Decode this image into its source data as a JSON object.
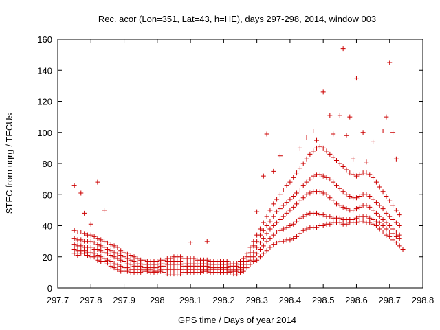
{
  "chart_data": {
    "type": "scatter",
    "title": "Rec. acor (Lon=351, Lat=43, h=HE), days 297-298, 2014, window 003",
    "xlabel": "GPS time / Days of year 2014",
    "ylabel": "STEC from uqrg / TECUs",
    "xlim": [
      297.7,
      298.8
    ],
    "ylim": [
      0,
      160
    ],
    "xticks": [
      "297.7",
      "297.8",
      "297.9",
      "298",
      "298.1",
      "298.2",
      "298.3",
      "298.4",
      "298.5",
      "298.6",
      "298.7",
      "298.8"
    ],
    "yticks": [
      "0",
      "20",
      "40",
      "60",
      "80",
      "100",
      "120",
      "140",
      "160"
    ],
    "grid": false,
    "legend": "none",
    "marker": "plus",
    "color": "#cc0000",
    "series": [
      {
        "x": [
          297.75,
          297.76,
          297.77,
          297.78,
          297.79,
          297.8,
          297.81,
          297.82,
          297.83,
          297.84,
          297.85,
          297.86,
          297.87,
          297.88,
          297.89,
          297.9,
          297.91,
          297.92,
          297.93,
          297.94,
          297.95,
          297.96,
          297.97,
          297.98,
          297.99,
          298.0,
          298.01,
          298.02,
          298.03,
          298.04,
          298.05,
          298.06,
          298.07,
          298.08,
          298.09,
          298.1,
          298.11,
          298.12,
          298.13,
          298.14,
          298.15,
          298.16,
          298.17,
          298.18,
          298.19,
          298.2,
          298.21,
          298.22,
          298.23,
          298.24,
          298.25,
          298.26,
          298.27,
          298.28,
          298.29,
          298.3,
          298.31,
          298.32,
          298.33,
          298.34,
          298.35,
          298.36,
          298.37,
          298.38,
          298.39,
          298.4,
          298.41,
          298.42,
          298.43,
          298.44,
          298.45,
          298.46,
          298.47,
          298.48,
          298.49,
          298.5,
          298.51,
          298.52,
          298.53,
          298.54,
          298.55,
          298.56,
          298.57,
          298.58,
          298.59,
          298.6,
          298.61,
          298.62,
          298.63,
          298.64,
          298.65,
          298.66,
          298.67,
          298.68,
          298.69,
          298.7,
          298.71,
          298.72,
          298.73,
          298.74
        ],
        "y": [
          22,
          21,
          22,
          22,
          21,
          20,
          20,
          18,
          17,
          17,
          16,
          14,
          13,
          12,
          11,
          11,
          11,
          10,
          10,
          10,
          10,
          11,
          11,
          10,
          10,
          10,
          11,
          10,
          9,
          9,
          9,
          9,
          9,
          10,
          10,
          10,
          10,
          10,
          10,
          11,
          11,
          10,
          10,
          10,
          10,
          10,
          10,
          10,
          9,
          9,
          10,
          11,
          13,
          15,
          17,
          18,
          20,
          22,
          24,
          26,
          28,
          29,
          30,
          30,
          31,
          31,
          32,
          33,
          35,
          37,
          38,
          39,
          39,
          39,
          40,
          40,
          41,
          41,
          42,
          42,
          42,
          41,
          41,
          42,
          42,
          42,
          43,
          43,
          42,
          42,
          41,
          40,
          38,
          36,
          34,
          33,
          31,
          29,
          27,
          25
        ]
      },
      {
        "x": [
          297.75,
          297.76,
          297.77,
          297.78,
          297.79,
          297.8,
          297.81,
          297.82,
          297.83,
          297.84,
          297.85,
          297.86,
          297.87,
          297.88,
          297.89,
          297.9,
          297.91,
          297.92,
          297.93,
          297.94,
          297.95,
          297.96,
          297.97,
          297.98,
          297.99,
          298.0,
          298.01,
          298.02,
          298.03,
          298.04,
          298.05,
          298.06,
          298.07,
          298.08,
          298.09,
          298.1,
          298.11,
          298.12,
          298.13,
          298.14,
          298.15,
          298.16,
          298.17,
          298.18,
          298.19,
          298.2,
          298.21,
          298.22,
          298.23,
          298.24,
          298.25,
          298.26,
          298.27,
          298.28,
          298.29,
          298.3,
          298.31,
          298.32,
          298.33,
          298.34,
          298.35,
          298.36,
          298.37,
          298.38,
          298.39,
          298.4,
          298.41,
          298.42,
          298.43,
          298.44,
          298.45,
          298.46,
          298.47,
          298.48,
          298.49,
          298.5,
          298.51,
          298.52,
          298.53,
          298.54,
          298.55,
          298.56,
          298.57,
          298.58,
          298.59,
          298.6,
          298.61,
          298.62,
          298.63,
          298.64,
          298.65,
          298.66,
          298.67,
          298.68,
          298.69,
          298.7,
          298.71,
          298.72,
          298.73
        ],
        "y": [
          25,
          24,
          24,
          24,
          23,
          23,
          22,
          21,
          20,
          19,
          18,
          17,
          16,
          15,
          14,
          13,
          13,
          12,
          12,
          12,
          12,
          12,
          12,
          12,
          11,
          11,
          12,
          12,
          12,
          12,
          12,
          12,
          12,
          12,
          12,
          12,
          12,
          12,
          12,
          12,
          12,
          12,
          12,
          12,
          12,
          12,
          12,
          11,
          11,
          11,
          12,
          13,
          15,
          18,
          20,
          22,
          25,
          27,
          30,
          32,
          34,
          36,
          37,
          38,
          39,
          40,
          41,
          43,
          45,
          46,
          47,
          48,
          48,
          48,
          47,
          47,
          46,
          46,
          45,
          45,
          45,
          44,
          44,
          44,
          44,
          45,
          46,
          46,
          46,
          45,
          44,
          43,
          42,
          40,
          38,
          36,
          35,
          33,
          32
        ]
      },
      {
        "x": [
          297.75,
          297.76,
          297.77,
          297.78,
          297.79,
          297.8,
          297.81,
          297.82,
          297.83,
          297.84,
          297.85,
          297.86,
          297.87,
          297.88,
          297.89,
          297.9,
          297.91,
          297.92,
          297.93,
          297.94,
          297.95,
          297.96,
          297.97,
          297.98,
          297.99,
          298.0,
          298.01,
          298.02,
          298.03,
          298.04,
          298.05,
          298.06,
          298.07,
          298.08,
          298.09,
          298.1,
          298.11,
          298.12,
          298.13,
          298.14,
          298.15,
          298.16,
          298.17,
          298.18,
          298.19,
          298.2,
          298.21,
          298.22,
          298.23,
          298.24,
          298.25,
          298.26,
          298.27,
          298.28,
          298.29,
          298.3,
          298.31,
          298.32,
          298.33,
          298.34,
          298.35,
          298.36,
          298.37,
          298.38,
          298.39,
          298.4,
          298.41,
          298.42,
          298.43,
          298.44,
          298.45,
          298.46,
          298.47,
          298.48,
          298.49,
          298.5,
          298.51,
          298.52,
          298.53,
          298.54,
          298.55,
          298.56,
          298.57,
          298.58,
          298.59,
          298.6,
          298.61,
          298.62,
          298.63,
          298.64,
          298.65,
          298.66,
          298.67,
          298.68,
          298.69,
          298.7,
          298.71,
          298.72,
          298.73
        ],
        "y": [
          28,
          27,
          27,
          26,
          26,
          26,
          25,
          25,
          24,
          23,
          22,
          21,
          20,
          19,
          18,
          17,
          16,
          15,
          14,
          14,
          14,
          13,
          13,
          13,
          13,
          13,
          14,
          14,
          15,
          15,
          15,
          15,
          15,
          14,
          14,
          14,
          14,
          14,
          14,
          14,
          14,
          13,
          13,
          13,
          13,
          13,
          13,
          12,
          12,
          12,
          13,
          15,
          17,
          20,
          23,
          26,
          29,
          32,
          35,
          38,
          40,
          42,
          44,
          46,
          48,
          50,
          52,
          54,
          56,
          58,
          60,
          61,
          62,
          62,
          62,
          61,
          60,
          58,
          56,
          54,
          53,
          52,
          51,
          50,
          50,
          51,
          52,
          53,
          53,
          52,
          50,
          48,
          46,
          44,
          42,
          40,
          38,
          36,
          34
        ]
      },
      {
        "x": [
          297.75,
          297.76,
          297.77,
          297.78,
          297.79,
          297.8,
          297.81,
          297.82,
          297.83,
          297.84,
          297.85,
          297.86,
          297.87,
          297.88,
          297.89,
          297.9,
          297.91,
          297.92,
          297.93,
          297.94,
          297.95,
          297.96,
          297.97,
          297.98,
          297.99,
          298.0,
          298.01,
          298.02,
          298.03,
          298.04,
          298.05,
          298.06,
          298.07,
          298.08,
          298.09,
          298.1,
          298.11,
          298.12,
          298.13,
          298.14,
          298.15,
          298.16,
          298.17,
          298.18,
          298.19,
          298.2,
          298.21,
          298.22,
          298.23,
          298.24,
          298.25,
          298.26,
          298.27,
          298.28,
          298.29,
          298.3,
          298.31,
          298.32,
          298.33,
          298.34,
          298.35,
          298.36,
          298.37,
          298.38,
          298.39,
          298.4,
          298.41,
          298.42,
          298.43,
          298.44,
          298.45,
          298.46,
          298.47,
          298.48,
          298.49,
          298.5,
          298.51,
          298.52,
          298.53,
          298.54,
          298.55,
          298.56,
          298.57,
          298.58,
          298.59,
          298.6,
          298.61,
          298.62,
          298.63,
          298.64,
          298.65,
          298.66,
          298.67,
          298.68,
          298.69,
          298.7,
          298.71,
          298.72,
          298.73
        ],
        "y": [
          32,
          31,
          31,
          30,
          30,
          30,
          29,
          28,
          27,
          26,
          25,
          24,
          23,
          22,
          21,
          20,
          19,
          18,
          17,
          16,
          16,
          15,
          15,
          15,
          15,
          15,
          16,
          16,
          17,
          17,
          17,
          17,
          17,
          16,
          16,
          16,
          16,
          16,
          16,
          16,
          16,
          15,
          15,
          15,
          15,
          15,
          15,
          14,
          14,
          14,
          15,
          17,
          20,
          23,
          27,
          30,
          34,
          37,
          40,
          43,
          46,
          49,
          51,
          53,
          55,
          57,
          59,
          61,
          63,
          66,
          68,
          70,
          72,
          73,
          73,
          72,
          71,
          70,
          68,
          66,
          64,
          62,
          60,
          59,
          58,
          58,
          59,
          60,
          60,
          59,
          57,
          55,
          53,
          51,
          48,
          46,
          44,
          42,
          40
        ]
      },
      {
        "x": [
          297.75,
          297.76,
          297.77,
          297.78,
          297.79,
          297.8,
          297.81,
          297.82,
          297.83,
          297.84,
          297.85,
          297.86,
          297.87,
          297.88,
          297.89,
          297.9,
          297.91,
          297.92,
          297.93,
          297.94,
          297.95,
          297.96,
          297.97,
          297.98,
          297.99,
          298.0,
          298.01,
          298.02,
          298.03,
          298.04,
          298.05,
          298.06,
          298.07,
          298.08,
          298.09,
          298.1,
          298.11,
          298.12,
          298.13,
          298.14,
          298.15,
          298.16,
          298.17,
          298.18,
          298.19,
          298.2,
          298.21,
          298.22,
          298.23,
          298.24,
          298.25,
          298.26,
          298.27,
          298.28,
          298.29,
          298.3,
          298.31,
          298.32,
          298.33,
          298.34,
          298.35,
          298.36,
          298.37,
          298.38,
          298.39,
          298.4,
          298.41,
          298.42,
          298.43,
          298.44,
          298.45,
          298.46,
          298.47,
          298.48,
          298.49,
          298.5,
          298.51,
          298.52,
          298.53,
          298.54,
          298.55,
          298.56,
          298.57,
          298.58,
          298.59,
          298.6,
          298.61,
          298.62,
          298.63,
          298.64,
          298.65,
          298.66,
          298.67,
          298.68,
          298.69,
          298.7,
          298.71,
          298.72,
          298.73
        ],
        "y": [
          37,
          36,
          36,
          35,
          34,
          34,
          33,
          32,
          31,
          30,
          29,
          28,
          27,
          26,
          24,
          23,
          22,
          21,
          20,
          19,
          18,
          18,
          17,
          17,
          17,
          17,
          18,
          18,
          19,
          19,
          20,
          20,
          20,
          19,
          19,
          19,
          19,
          18,
          18,
          18,
          18,
          17,
          17,
          17,
          17,
          17,
          17,
          16,
          16,
          16,
          17,
          19,
          22,
          26,
          30,
          34,
          38,
          42,
          46,
          50,
          54,
          57,
          60,
          63,
          66,
          68,
          71,
          74,
          77,
          80,
          83,
          86,
          88,
          90,
          91,
          90,
          88,
          86,
          84,
          82,
          80,
          78,
          76,
          74,
          73,
          72,
          73,
          74,
          74,
          73,
          71,
          68,
          65,
          62,
          59,
          56,
          53,
          50,
          47
        ]
      },
      {
        "x": [
          297.75,
          297.77,
          297.78,
          297.8,
          297.82,
          297.84,
          298.1,
          298.15,
          298.3,
          298.32,
          298.33,
          298.35,
          298.37,
          298.43,
          298.45,
          298.47,
          298.48,
          298.5,
          298.52,
          298.53,
          298.55,
          298.56,
          298.57,
          298.58,
          298.59,
          298.6,
          298.62,
          298.63,
          298.65,
          298.68,
          298.69,
          298.7,
          298.71,
          298.72
        ],
        "y": [
          66,
          61,
          48,
          41,
          68,
          50,
          29,
          30,
          49,
          72,
          99,
          75,
          85,
          90,
          97,
          101,
          95,
          126,
          111,
          99,
          111,
          154,
          98,
          110,
          83,
          135,
          100,
          81,
          94,
          101,
          110,
          145,
          100,
          83
        ]
      }
    ]
  }
}
